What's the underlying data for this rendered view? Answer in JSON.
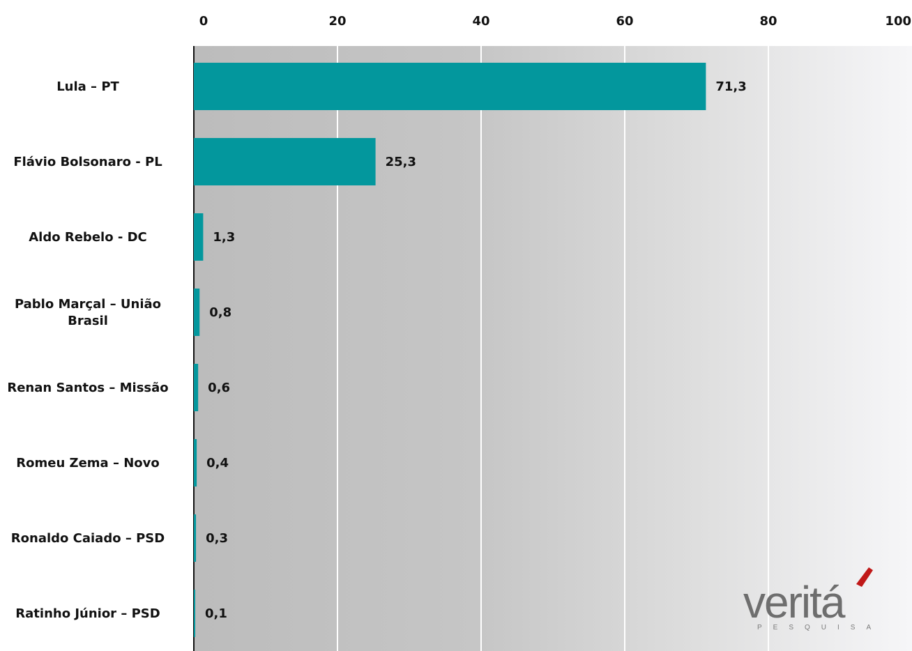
{
  "chart_data": {
    "type": "bar",
    "orientation": "horizontal",
    "categories": [
      "Lula – PT",
      "Flávio Bolsonaro - PL",
      "Aldo Rebelo - DC",
      "Pablo Marçal – União Brasil",
      "Renan Santos – Missão",
      "Romeu Zema – Novo",
      "Ronaldo Caiado – PSD",
      "Ratinho Júnior – PSD"
    ],
    "values": [
      71.3,
      25.3,
      1.3,
      0.8,
      0.6,
      0.4,
      0.3,
      0.1
    ],
    "value_labels": [
      "71,3",
      "25,3",
      "1,3",
      "0,8",
      "0,6",
      "0,4",
      "0,3",
      "0,1"
    ],
    "xlim": [
      0,
      100
    ],
    "x_ticks": [
      0,
      20,
      40,
      60,
      80,
      100
    ],
    "x_axis_position": "top",
    "grid": true,
    "bar_color": "#03979d",
    "background_gradient": [
      "#bcbcbc",
      "#f6f6f8"
    ]
  },
  "logo": {
    "text": "veritá",
    "subtext": "PESQUISA",
    "accent_color": "#c01818"
  }
}
